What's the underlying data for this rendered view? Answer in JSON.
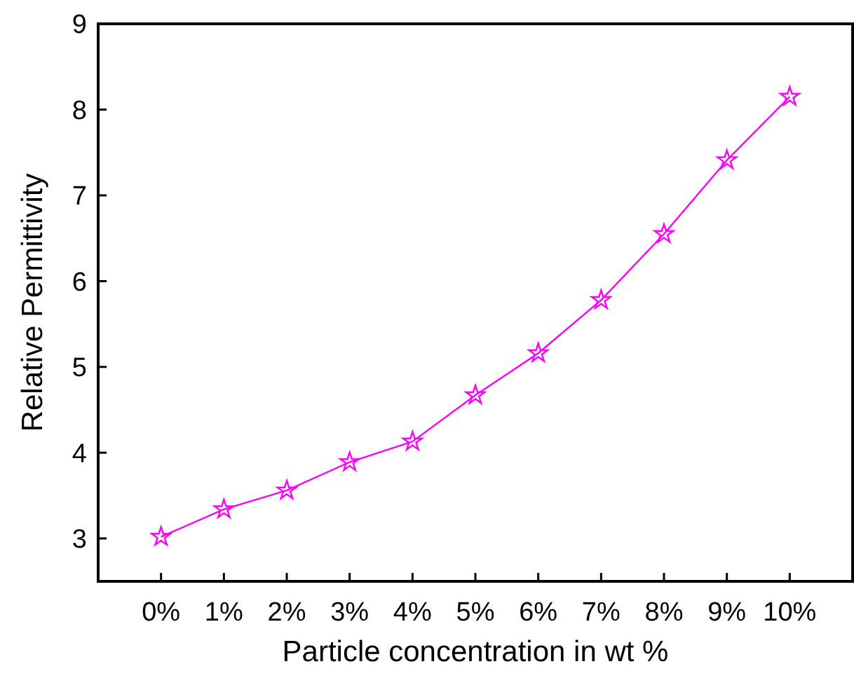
{
  "chart_data": {
    "type": "line",
    "xlabel": "Particle concentration in wt %",
    "ylabel": "Relative Permittivity",
    "categories": [
      "0%",
      "1%",
      "2%",
      "3%",
      "4%",
      "5%",
      "6%",
      "7%",
      "8%",
      "9%",
      "10%"
    ],
    "series": [
      {
        "color": "#ff00ff",
        "values": [
          3.02,
          3.34,
          3.56,
          3.89,
          4.13,
          4.67,
          5.16,
          5.78,
          6.55,
          7.41,
          8.15
        ]
      }
    ],
    "ylim": [
      2.5,
      9
    ],
    "yticks": [
      3,
      4,
      5,
      6,
      7,
      8,
      9
    ],
    "marker": "star",
    "line_style": "solid"
  }
}
